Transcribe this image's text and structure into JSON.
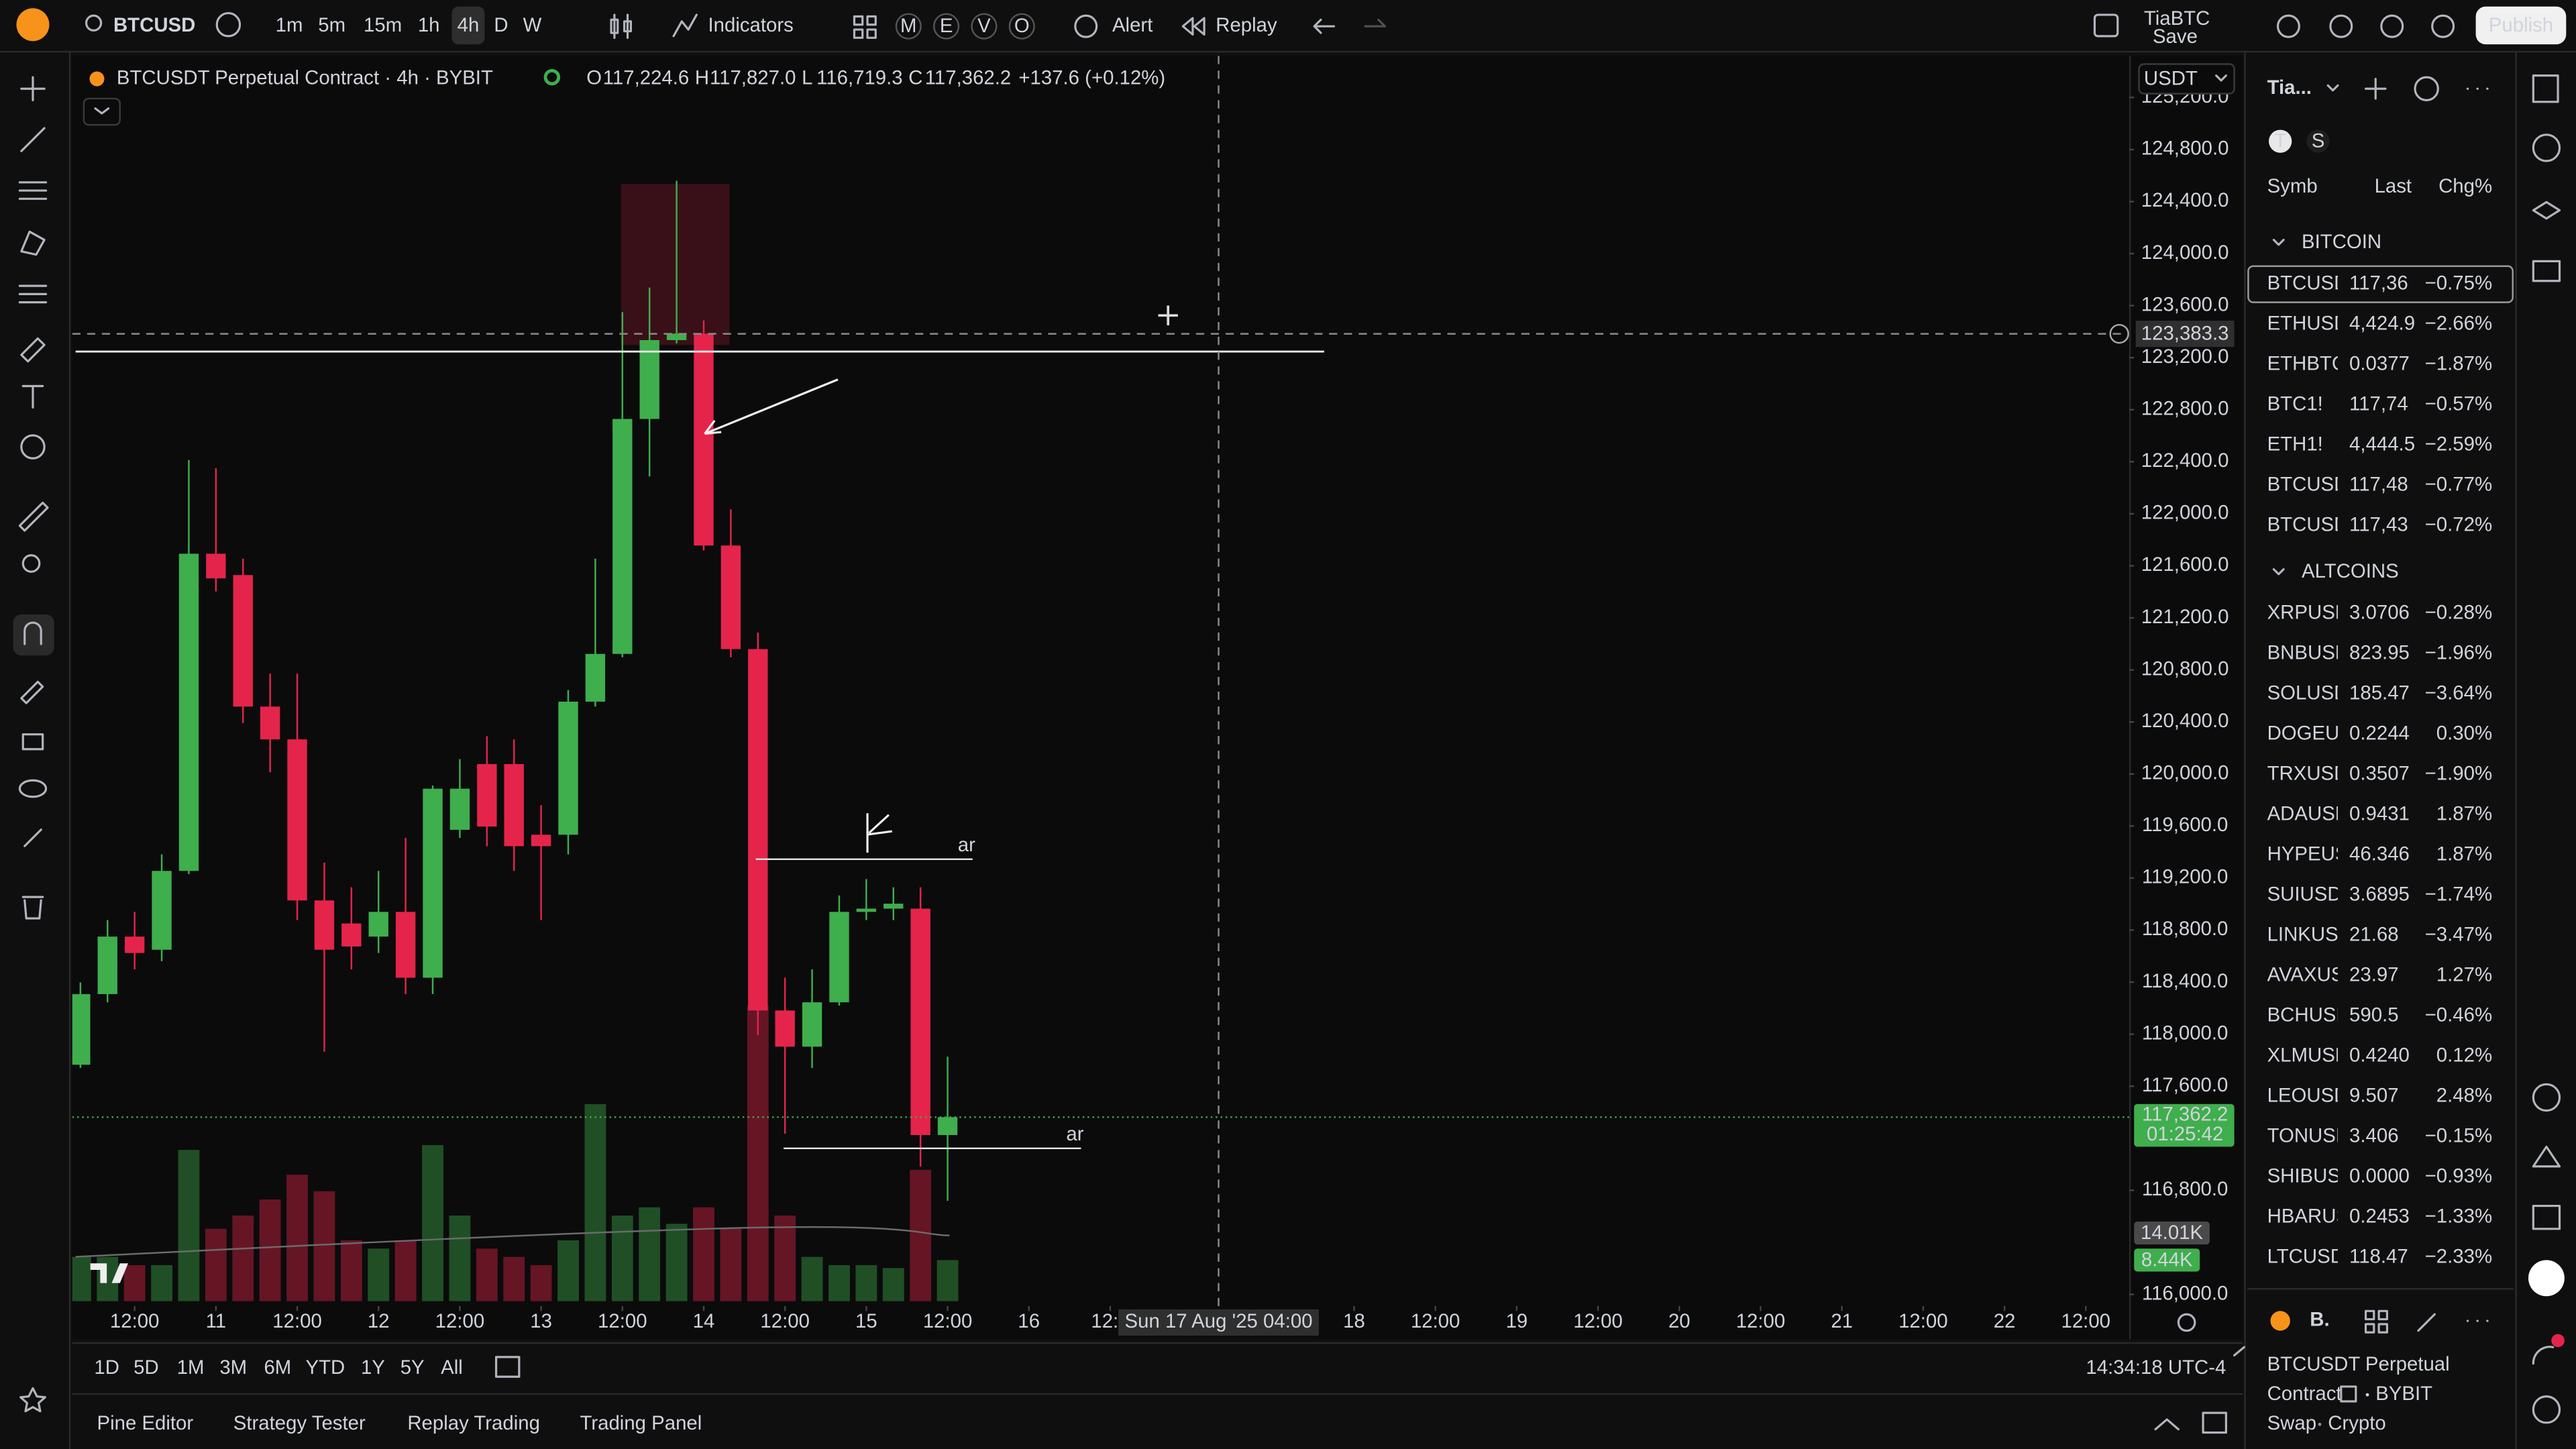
{
  "toolbar": {
    "symbol": "BTCUSD",
    "intervals": [
      "1m",
      "5m",
      "15m",
      "1h",
      "4h",
      "D",
      "W"
    ],
    "active_interval": 4,
    "indicators": "Indicators",
    "layout_letters": [
      "M",
      "E",
      "V",
      "O"
    ],
    "alert": "Alert",
    "replay": "Replay",
    "layout_name": "TiaBTC",
    "save": "Save",
    "publish": "Publish"
  },
  "legend": {
    "title": "BTCUSDT Perpetual Contract · 4h · BYBIT",
    "ohlc": [
      {
        "key": "O",
        "value": "117,224.6"
      },
      {
        "key": "H",
        "value": "117,827.0"
      },
      {
        "key": "L",
        "value": "116,719.3"
      },
      {
        "key": "C",
        "value": "117,362.2"
      }
    ],
    "change": "+137.6 (+0.12%)"
  },
  "currency": "USDT",
  "chart_data": {
    "type": "candlestick",
    "up_color": "#3fae4d",
    "down_color": "#e5244b",
    "grid": false,
    "open": [
      117765,
      118308,
      118750,
      118649,
      119255,
      121693,
      121529,
      120518,
      120266,
      119028,
      118851,
      118750,
      118940,
      118434,
      119571,
      120076,
      120076,
      119533,
      119533,
      120556,
      120923,
      122729,
      123335,
      123385,
      121756,
      120960,
      118182,
      117904,
      118245,
      118940,
      118965,
      118965,
      117224.6
    ],
    "high": [
      118397,
      118877,
      118940,
      119382,
      122413,
      122350,
      121655,
      120771,
      120771,
      119319,
      119129,
      119255,
      119508,
      119912,
      120114,
      120291,
      120266,
      119761,
      120645,
      121655,
      123550,
      123739,
      124560,
      123486,
      122034,
      121087,
      118434,
      118498,
      119066,
      119192,
      119129,
      119129,
      117827.0
    ],
    "low": [
      117740,
      118245,
      118498,
      118561,
      119230,
      121403,
      120392,
      120013,
      118877,
      117866,
      118498,
      118624,
      118308,
      118308,
      119508,
      119445,
      119255,
      118877,
      119382,
      120518,
      120897,
      122287,
      123310,
      121718,
      120897,
      117992,
      117235,
      117740,
      118220,
      118877,
      118877,
      116982,
      116719.3
    ],
    "close": [
      118308,
      118750,
      118624,
      119255,
      121693,
      121504,
      120518,
      120266,
      119028,
      118649,
      118674,
      118940,
      118434,
      119887,
      119887,
      119596,
      119445,
      119445,
      120556,
      120923,
      122729,
      123335,
      123385,
      121756,
      120960,
      118182,
      117904,
      118245,
      118940,
      118965,
      119003,
      117224.6,
      117362.2
    ],
    "volume": [
      9100,
      9100,
      7400,
      7400,
      31100,
      14900,
      17600,
      20900,
      26000,
      22600,
      12500,
      10800,
      12500,
      32100,
      17600,
      10800,
      9100,
      7400,
      12500,
      40500,
      17600,
      19300,
      15900,
      19300,
      14900,
      60800,
      17600,
      9100,
      7400,
      7400,
      6800,
      27000,
      8440
    ],
    "volume_label": {
      "value": 8440,
      "label": "8.44K"
    },
    "volume_ma_label": {
      "value": 14010,
      "label": "14.01K"
    },
    "ylim": [
      115910,
      125520
    ],
    "yticks": [
      {
        "value": 125200,
        "label": "125,200.0"
      },
      {
        "value": 124800,
        "label": "124,800.0"
      },
      {
        "value": 124400,
        "label": "124,400.0"
      },
      {
        "value": 124000,
        "label": "124,000.0"
      },
      {
        "value": 123600,
        "label": "123,600.0"
      },
      {
        "value": 123200,
        "label": "123,200.0"
      },
      {
        "value": 122800,
        "label": "122,800.0"
      },
      {
        "value": 122400,
        "label": "122,400.0"
      },
      {
        "value": 122000,
        "label": "122,000.0"
      },
      {
        "value": 121600,
        "label": "121,600.0"
      },
      {
        "value": 121200,
        "label": "121,200.0"
      },
      {
        "value": 120800,
        "label": "120,800.0"
      },
      {
        "value": 120400,
        "label": "120,400.0"
      },
      {
        "value": 120000,
        "label": "120,000.0"
      },
      {
        "value": 119600,
        "label": "119,600.0"
      },
      {
        "value": 119200,
        "label": "119,200.0"
      },
      {
        "value": 118800,
        "label": "118,800.0"
      },
      {
        "value": 118400,
        "label": "118,400.0"
      },
      {
        "value": 118000,
        "label": "118,000.0"
      },
      {
        "value": 117600,
        "label": "117,600.0"
      },
      {
        "value": 116800,
        "label": "116,800.0"
      },
      {
        "value": 116000,
        "label": "116,000.0"
      }
    ],
    "xlim": [
      -0.3,
      75.6
    ],
    "xticks": [
      {
        "value": 2,
        "label": "12:00"
      },
      {
        "value": 5,
        "label": "11"
      },
      {
        "value": 8,
        "label": "12:00"
      },
      {
        "value": 11,
        "label": "12"
      },
      {
        "value": 14,
        "label": "12:00"
      },
      {
        "value": 17,
        "label": "13"
      },
      {
        "value": 20,
        "label": "12:00"
      },
      {
        "value": 23,
        "label": "14"
      },
      {
        "value": 26,
        "label": "12:00"
      },
      {
        "value": 29,
        "label": "15"
      },
      {
        "value": 32,
        "label": "12:00"
      },
      {
        "value": 35,
        "label": "16"
      },
      {
        "value": 38,
        "label": "12:0"
      },
      {
        "value": 47,
        "label": "18"
      },
      {
        "value": 50,
        "label": "12:00"
      },
      {
        "value": 53,
        "label": "19"
      },
      {
        "value": 56,
        "label": "12:00"
      },
      {
        "value": 59,
        "label": "20"
      },
      {
        "value": 62,
        "label": "12:00"
      },
      {
        "value": 65,
        "label": "21"
      },
      {
        "value": 68,
        "label": "12:00"
      },
      {
        "value": 71,
        "label": "22"
      },
      {
        "value": 74,
        "label": "12:00"
      }
    ],
    "crosshair": {
      "x": {
        "value": 42,
        "label": "Sun 17 Aug '25  04:00"
      },
      "y": {
        "value": 123383.3,
        "label": "123,383.3"
      }
    },
    "last_price": {
      "value": 117362.2,
      "label": "117,362.2",
      "countdown": "01:25:42"
    },
    "drawing_labels": [
      "ar",
      "ar"
    ]
  },
  "ranges": [
    "1D",
    "5D",
    "1M",
    "3M",
    "6M",
    "YTD",
    "1Y",
    "5Y",
    "All"
  ],
  "clock": "14:34:18 UTC-4",
  "tabs": [
    "Pine Editor",
    "Strategy Tester",
    "Replay Trading",
    "Trading Panel"
  ],
  "watchlist": {
    "name": "Tia...",
    "flags": [
      "T",
      "S"
    ],
    "columns": [
      "Symb",
      "Last",
      "Chg%"
    ],
    "sections": [
      {
        "title": "BITCOIN",
        "rows": [
          [
            "BTCUSD",
            "117,36",
            "−0.75%"
          ],
          [
            "ETHUSD",
            "4,424.9",
            "−2.66%"
          ],
          [
            "ETHBTC",
            "0.0377",
            "−1.87%"
          ],
          [
            "BTC1!",
            "117,74",
            "−0.57%"
          ],
          [
            "ETH1!",
            "4,444.5",
            "−2.59%"
          ],
          [
            "BTCUSD",
            "117,48",
            "−0.77%"
          ],
          [
            "BTCUSD",
            "117,43",
            "−0.72%"
          ]
        ]
      },
      {
        "title": "ALTCOINS",
        "rows": [
          [
            "XRPUSD",
            "3.0706",
            "−0.28%"
          ],
          [
            "BNBUSD",
            "823.95",
            "−1.96%"
          ],
          [
            "SOLUSD",
            "185.47",
            "−3.64%"
          ],
          [
            "DOGEUSD",
            "0.2244",
            "0.30%"
          ],
          [
            "TRXUSD",
            "0.3507",
            "−1.90%"
          ],
          [
            "ADAUSD",
            "0.9431",
            "1.87%"
          ],
          [
            "HYPEUSD",
            "46.346",
            "1.87%"
          ],
          [
            "SUIUSD",
            "3.6895",
            "−1.74%"
          ],
          [
            "LINKUSD",
            "21.68",
            "−3.47%"
          ],
          [
            "AVAXUSD",
            "23.97",
            "1.27%"
          ],
          [
            "BCHUSD",
            "590.5",
            "−0.46%"
          ],
          [
            "XLMUSD",
            "0.4240",
            "0.12%"
          ],
          [
            "LEOUSD",
            "9.507",
            "2.48%"
          ],
          [
            "TONUSD",
            "3.406",
            "−0.15%"
          ],
          [
            "SHIBUSD",
            "0.0000",
            "−0.93%"
          ],
          [
            "HBARUSD",
            "0.2453",
            "−1.33%"
          ],
          [
            "LTCUSD",
            "118.47",
            "−2.33%"
          ]
        ]
      }
    ]
  },
  "details": {
    "short": "B.",
    "name": "BTCUSDT Perpetual",
    "name2": "Contract",
    "exchange": "BYBIT",
    "kind": [
      "Swap",
      "Crypto"
    ]
  }
}
